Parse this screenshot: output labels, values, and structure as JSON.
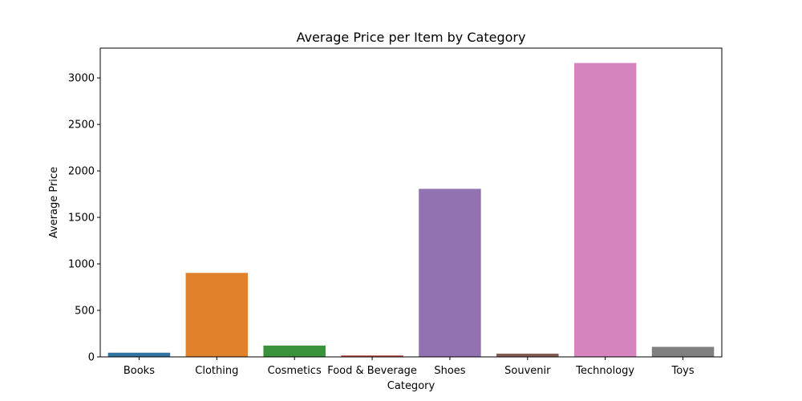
{
  "chart_data": {
    "type": "bar",
    "title": "Average Price per Item by Category",
    "xlabel": "Category",
    "ylabel": "Average Price",
    "categories": [
      "Books",
      "Clothing",
      "Cosmetics",
      "Food & Beverage",
      "Shoes",
      "Souvenir",
      "Technology",
      "Toys"
    ],
    "values": [
      45,
      903,
      122,
      15,
      1807,
      35,
      3160,
      108
    ],
    "ylim": [
      0,
      3320
    ],
    "yticks": [
      0,
      500,
      1000,
      1500,
      2000,
      2500,
      3000
    ],
    "grid": false,
    "colors": [
      "#3274a1",
      "#e1812c",
      "#3a923a",
      "#c03d3e",
      "#9372b2",
      "#845b53",
      "#d684bd",
      "#7f7f7f"
    ]
  }
}
